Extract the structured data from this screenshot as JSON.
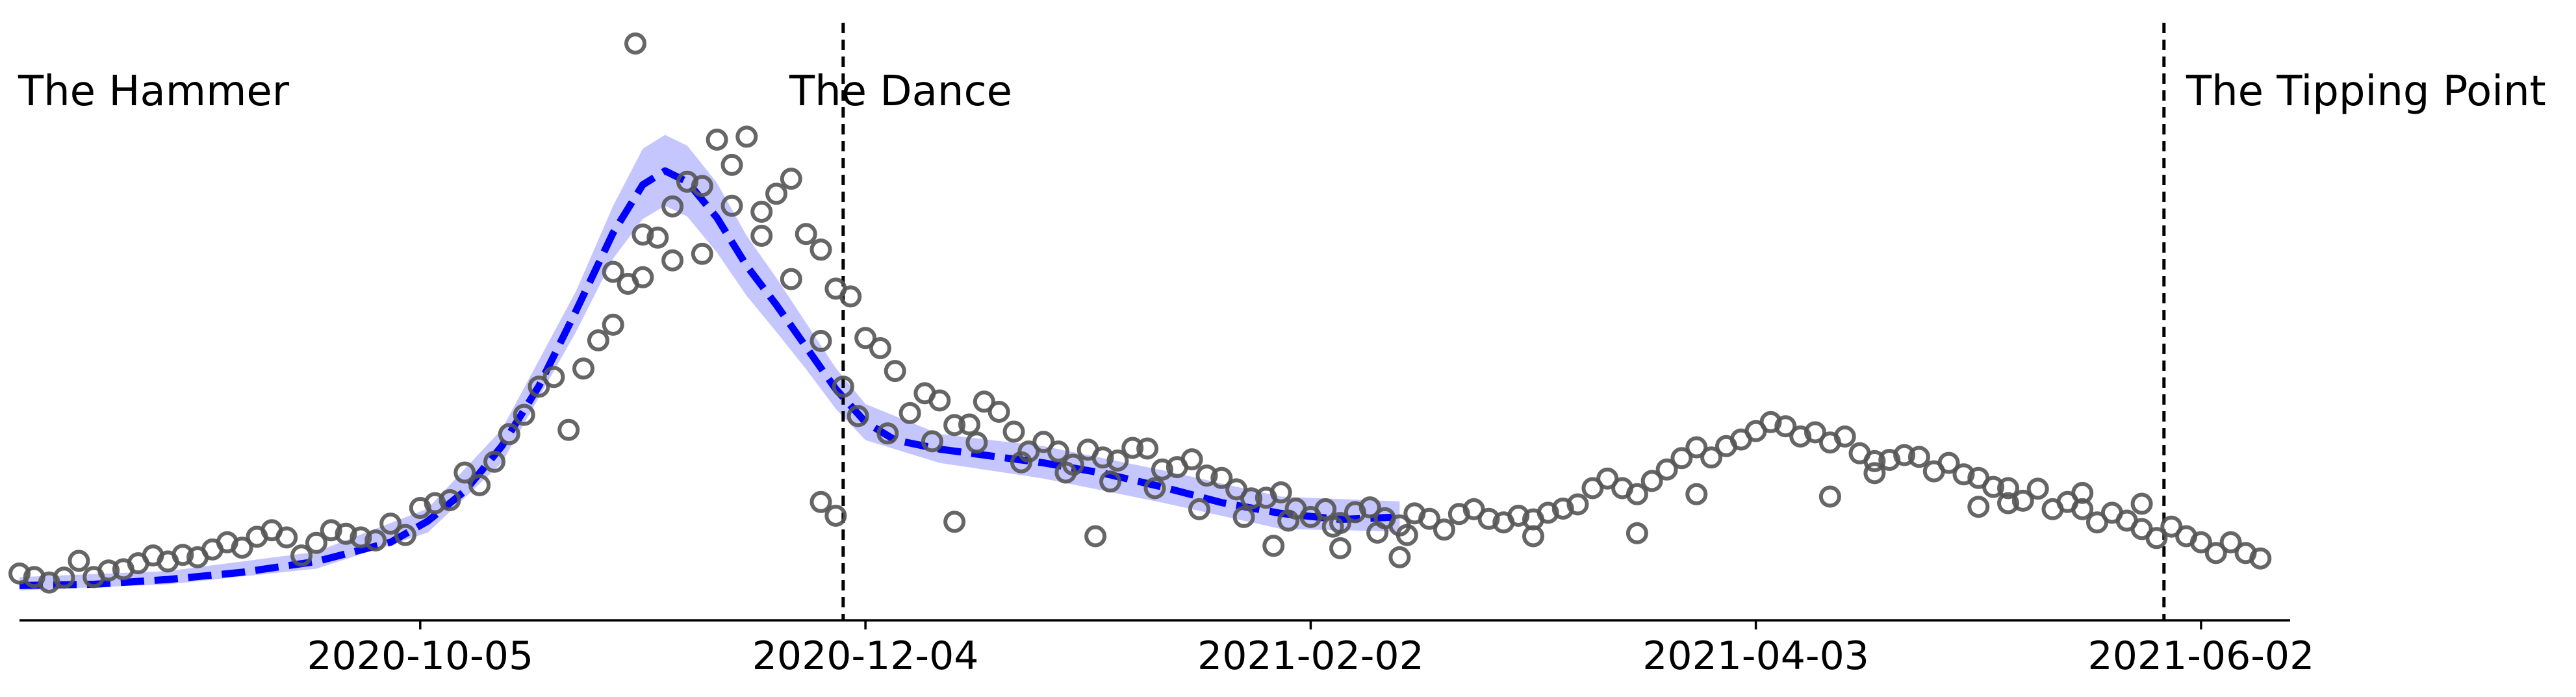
{
  "chart_data": {
    "type": "scatter",
    "title": "",
    "xlabel": "",
    "ylabel": "",
    "x_axis": {
      "type": "date",
      "range": [
        "2020-08-12",
        "2021-06-14"
      ],
      "ticks": [
        "2020-10-05",
        "2020-12-04",
        "2021-02-02",
        "2021-04-03",
        "2021-06-02"
      ]
    },
    "y_axis": {
      "visible": false,
      "ylim": [
        0,
        1
      ]
    },
    "grid": false,
    "legend": "none",
    "colors": {
      "points": "#555555",
      "fit_line": "#0000ff",
      "band": "#8080ff",
      "vlines": "#000000"
    },
    "phase_boundaries": [
      "2020-12-01",
      "2021-05-28"
    ],
    "annotations": [
      "The Hammer",
      "The Dance",
      "The Tipping Point"
    ],
    "series": [
      {
        "kind": "scatter",
        "points": [
          [
            "2020-08-12",
            0.078
          ],
          [
            "2020-08-14",
            0.072
          ],
          [
            "2020-08-16",
            0.063
          ],
          [
            "2020-08-18",
            0.071
          ],
          [
            "2020-08-20",
            0.099
          ],
          [
            "2020-08-22",
            0.072
          ],
          [
            "2020-08-24",
            0.083
          ],
          [
            "2020-08-26",
            0.085
          ],
          [
            "2020-08-28",
            0.095
          ],
          [
            "2020-08-30",
            0.108
          ],
          [
            "2020-09-01",
            0.098
          ],
          [
            "2020-09-03",
            0.109
          ],
          [
            "2020-09-05",
            0.105
          ],
          [
            "2020-09-07",
            0.118
          ],
          [
            "2020-09-09",
            0.13
          ],
          [
            "2020-09-11",
            0.121
          ],
          [
            "2020-09-13",
            0.139
          ],
          [
            "2020-09-15",
            0.15
          ],
          [
            "2020-09-17",
            0.138
          ],
          [
            "2020-09-19",
            0.108
          ],
          [
            "2020-09-21",
            0.129
          ],
          [
            "2020-09-23",
            0.15
          ],
          [
            "2020-09-25",
            0.144
          ],
          [
            "2020-09-27",
            0.138
          ],
          [
            "2020-09-29",
            0.133
          ],
          [
            "2020-10-01",
            0.161
          ],
          [
            "2020-10-03",
            0.142
          ],
          [
            "2020-10-05",
            0.187
          ],
          [
            "2020-10-07",
            0.195
          ],
          [
            "2020-10-09",
            0.2
          ],
          [
            "2020-10-11",
            0.246
          ],
          [
            "2020-10-13",
            0.225
          ],
          [
            "2020-10-15",
            0.264
          ],
          [
            "2020-10-17",
            0.31
          ],
          [
            "2020-10-19",
            0.342
          ],
          [
            "2020-10-21",
            0.389
          ],
          [
            "2020-10-23",
            0.405
          ],
          [
            "2020-10-25",
            0.317
          ],
          [
            "2020-10-27",
            0.419
          ],
          [
            "2020-10-29",
            0.466
          ],
          [
            "2020-10-31",
            0.492
          ],
          [
            "2020-11-02",
            0.56
          ],
          [
            "2020-11-04",
            0.571
          ],
          [
            "2020-11-06",
            0.637
          ],
          [
            "2020-11-08",
            0.599
          ],
          [
            "2020-11-10",
            0.73
          ],
          [
            "2020-11-12",
            0.61
          ],
          [
            "2020-11-14",
            0.8
          ],
          [
            "2020-11-16",
            0.758
          ],
          [
            "2020-11-18",
            0.805
          ],
          [
            "2020-11-20",
            0.68
          ],
          [
            "2020-11-22",
            0.71
          ],
          [
            "2020-11-24",
            0.735
          ],
          [
            "2020-11-26",
            0.643
          ],
          [
            "2020-11-28",
            0.617
          ],
          [
            "2020-11-30",
            0.552
          ],
          [
            "2020-12-02",
            0.539
          ],
          [
            "2020-12-04",
            0.47
          ],
          [
            "2020-12-06",
            0.453
          ],
          [
            "2020-12-08",
            0.415
          ],
          [
            "2020-12-10",
            0.345
          ],
          [
            "2020-12-12",
            0.378
          ],
          [
            "2020-12-14",
            0.366
          ],
          [
            "2020-12-16",
            0.325
          ],
          [
            "2020-12-18",
            0.326
          ],
          [
            "2020-12-20",
            0.364
          ],
          [
            "2020-12-22",
            0.347
          ],
          [
            "2020-12-24",
            0.314
          ],
          [
            "2020-12-26",
            0.281
          ],
          [
            "2020-12-28",
            0.297
          ],
          [
            "2020-12-30",
            0.281
          ],
          [
            "2021-01-01",
            0.259
          ],
          [
            "2021-01-03",
            0.284
          ],
          [
            "2021-01-05",
            0.271
          ],
          [
            "2021-01-07",
            0.266
          ],
          [
            "2021-01-09",
            0.287
          ],
          [
            "2021-01-11",
            0.286
          ],
          [
            "2021-01-13",
            0.251
          ],
          [
            "2021-01-15",
            0.255
          ],
          [
            "2021-01-17",
            0.268
          ],
          [
            "2021-01-19",
            0.241
          ],
          [
            "2021-01-21",
            0.237
          ],
          [
            "2021-01-23",
            0.218
          ],
          [
            "2021-01-25",
            0.203
          ],
          [
            "2021-01-27",
            0.204
          ],
          [
            "2021-01-29",
            0.213
          ],
          [
            "2021-01-31",
            0.186
          ],
          [
            "2021-02-02",
            0.172
          ],
          [
            "2021-02-04",
            0.185
          ],
          [
            "2021-02-06",
            0.162
          ],
          [
            "2021-02-08",
            0.18
          ],
          [
            "2021-02-10",
            0.188
          ],
          [
            "2021-02-12",
            0.17
          ],
          [
            "2021-02-14",
            0.158
          ],
          [
            "2021-02-16",
            0.178
          ],
          [
            "2021-02-18",
            0.169
          ],
          [
            "2021-02-20",
            0.151
          ],
          [
            "2021-02-22",
            0.177
          ],
          [
            "2021-02-24",
            0.185
          ],
          [
            "2021-02-26",
            0.169
          ],
          [
            "2021-02-28",
            0.163
          ],
          [
            "2021-03-02",
            0.174
          ],
          [
            "2021-03-04",
            0.168
          ],
          [
            "2021-03-06",
            0.179
          ],
          [
            "2021-03-08",
            0.186
          ],
          [
            "2021-03-10",
            0.193
          ],
          [
            "2021-03-12",
            0.22
          ],
          [
            "2021-03-14",
            0.236
          ],
          [
            "2021-03-16",
            0.22
          ],
          [
            "2021-03-18",
            0.21
          ],
          [
            "2021-03-20",
            0.232
          ],
          [
            "2021-03-22",
            0.251
          ],
          [
            "2021-03-24",
            0.27
          ],
          [
            "2021-03-26",
            0.288
          ],
          [
            "2021-03-28",
            0.271
          ],
          [
            "2021-03-30",
            0.29
          ],
          [
            "2021-04-01",
            0.301
          ],
          [
            "2021-04-03",
            0.315
          ],
          [
            "2021-04-05",
            0.33
          ],
          [
            "2021-04-07",
            0.323
          ],
          [
            "2021-04-09",
            0.306
          ],
          [
            "2021-04-11",
            0.313
          ],
          [
            "2021-04-13",
            0.296
          ],
          [
            "2021-04-15",
            0.306
          ],
          [
            "2021-04-17",
            0.278
          ],
          [
            "2021-04-19",
            0.265
          ],
          [
            "2021-04-21",
            0.267
          ],
          [
            "2021-04-23",
            0.275
          ],
          [
            "2021-04-25",
            0.272
          ],
          [
            "2021-04-27",
            0.248
          ],
          [
            "2021-04-29",
            0.262
          ],
          [
            "2021-05-01",
            0.243
          ],
          [
            "2021-05-03",
            0.237
          ],
          [
            "2021-05-05",
            0.222
          ],
          [
            "2021-05-07",
            0.22
          ],
          [
            "2021-05-09",
            0.199
          ],
          [
            "2021-05-11",
            0.219
          ],
          [
            "2021-05-13",
            0.185
          ],
          [
            "2021-05-15",
            0.197
          ],
          [
            "2021-05-17",
            0.185
          ],
          [
            "2021-05-19",
            0.163
          ],
          [
            "2021-05-21",
            0.179
          ],
          [
            "2021-05-23",
            0.166
          ],
          [
            "2021-05-25",
            0.152
          ],
          [
            "2021-05-27",
            0.137
          ],
          [
            "2021-05-29",
            0.156
          ],
          [
            "2021-05-31",
            0.14
          ],
          [
            "2021-06-02",
            0.13
          ],
          [
            "2021-06-04",
            0.112
          ],
          [
            "2021-06-06",
            0.13
          ],
          [
            "2021-06-08",
            0.112
          ],
          [
            "2021-06-10",
            0.103
          ],
          [
            "2020-10-31",
            0.58
          ],
          [
            "2020-11-04",
            0.642
          ],
          [
            "2020-11-08",
            0.689
          ],
          [
            "2020-11-12",
            0.723
          ],
          [
            "2020-11-03",
            0.96
          ],
          [
            "2020-11-16",
            0.69
          ],
          [
            "2020-11-20",
            0.64
          ],
          [
            "2020-11-24",
            0.568
          ],
          [
            "2020-11-28",
            0.465
          ],
          [
            "2020-12-01",
            0.389
          ],
          [
            "2020-12-03",
            0.34
          ],
          [
            "2020-12-07",
            0.311
          ],
          [
            "2020-12-13",
            0.298
          ],
          [
            "2020-12-19",
            0.296
          ],
          [
            "2020-12-25",
            0.263
          ],
          [
            "2020-12-31",
            0.246
          ],
          [
            "2021-01-06",
            0.231
          ],
          [
            "2021-01-12",
            0.22
          ],
          [
            "2021-01-18",
            0.185
          ],
          [
            "2021-01-24",
            0.172
          ],
          [
            "2021-01-30",
            0.166
          ],
          [
            "2021-02-05",
            0.156
          ],
          [
            "2021-02-11",
            0.146
          ],
          [
            "2021-02-15",
            0.142
          ],
          [
            "2020-11-28",
            0.197
          ],
          [
            "2020-11-30",
            0.174
          ],
          [
            "2020-12-16",
            0.164
          ],
          [
            "2021-01-04",
            0.14
          ],
          [
            "2021-01-28",
            0.124
          ],
          [
            "2021-02-06",
            0.12
          ],
          [
            "2021-02-14",
            0.105
          ],
          [
            "2021-03-04",
            0.14
          ],
          [
            "2021-03-18",
            0.145
          ],
          [
            "2021-03-26",
            0.21
          ],
          [
            "2021-04-13",
            0.206
          ],
          [
            "2021-04-19",
            0.245
          ],
          [
            "2021-05-03",
            0.189
          ],
          [
            "2021-05-07",
            0.195
          ],
          [
            "2021-05-17",
            0.212
          ],
          [
            "2021-05-25",
            0.194
          ]
        ]
      },
      {
        "kind": "fit",
        "points": [
          [
            "2020-08-12",
            0.058
          ],
          [
            "2020-08-22",
            0.06
          ],
          [
            "2020-09-01",
            0.068
          ],
          [
            "2020-09-11",
            0.08
          ],
          [
            "2020-09-21",
            0.098
          ],
          [
            "2020-10-01",
            0.13
          ],
          [
            "2020-10-06",
            0.165
          ],
          [
            "2020-10-11",
            0.215
          ],
          [
            "2020-10-16",
            0.29
          ],
          [
            "2020-10-21",
            0.39
          ],
          [
            "2020-10-26",
            0.515
          ],
          [
            "2020-10-31",
            0.645
          ],
          [
            "2020-11-04",
            0.725
          ],
          [
            "2020-11-07",
            0.748
          ],
          [
            "2020-11-10",
            0.73
          ],
          [
            "2020-11-14",
            0.67
          ],
          [
            "2020-11-18",
            0.59
          ],
          [
            "2020-11-22",
            0.525
          ],
          [
            "2020-11-26",
            0.455
          ],
          [
            "2020-11-30",
            0.385
          ],
          [
            "2020-12-04",
            0.33
          ],
          [
            "2020-12-08",
            0.3
          ],
          [
            "2020-12-14",
            0.285
          ],
          [
            "2020-12-20",
            0.275
          ],
          [
            "2020-12-28",
            0.262
          ],
          [
            "2021-01-05",
            0.245
          ],
          [
            "2021-01-13",
            0.222
          ],
          [
            "2021-01-21",
            0.196
          ],
          [
            "2021-01-29",
            0.178
          ],
          [
            "2021-02-06",
            0.168
          ],
          [
            "2021-02-14",
            0.172
          ]
        ]
      },
      {
        "kind": "band",
        "upper": [
          [
            "2020-08-12",
            0.072
          ],
          [
            "2020-09-01",
            0.082
          ],
          [
            "2020-09-21",
            0.114
          ],
          [
            "2020-10-06",
            0.186
          ],
          [
            "2020-10-16",
            0.318
          ],
          [
            "2020-10-26",
            0.548
          ],
          [
            "2020-10-31",
            0.69
          ],
          [
            "2020-11-04",
            0.785
          ],
          [
            "2020-11-07",
            0.808
          ],
          [
            "2020-11-10",
            0.79
          ],
          [
            "2020-11-14",
            0.728
          ],
          [
            "2020-11-18",
            0.64
          ],
          [
            "2020-11-22",
            0.57
          ],
          [
            "2020-11-26",
            0.495
          ],
          [
            "2020-11-30",
            0.42
          ],
          [
            "2020-12-04",
            0.36
          ],
          [
            "2020-12-14",
            0.31
          ],
          [
            "2020-12-28",
            0.29
          ],
          [
            "2021-01-13",
            0.25
          ],
          [
            "2021-01-29",
            0.206
          ],
          [
            "2021-02-14",
            0.198
          ]
        ],
        "lower": [
          [
            "2020-08-12",
            0.05
          ],
          [
            "2020-09-01",
            0.06
          ],
          [
            "2020-09-21",
            0.086
          ],
          [
            "2020-10-06",
            0.146
          ],
          [
            "2020-10-16",
            0.262
          ],
          [
            "2020-10-26",
            0.48
          ],
          [
            "2020-10-31",
            0.602
          ],
          [
            "2020-11-04",
            0.668
          ],
          [
            "2020-11-07",
            0.69
          ],
          [
            "2020-11-10",
            0.672
          ],
          [
            "2020-11-14",
            0.612
          ],
          [
            "2020-11-18",
            0.54
          ],
          [
            "2020-11-22",
            0.48
          ],
          [
            "2020-11-26",
            0.418
          ],
          [
            "2020-11-30",
            0.352
          ],
          [
            "2020-12-04",
            0.3
          ],
          [
            "2020-12-14",
            0.262
          ],
          [
            "2020-12-28",
            0.236
          ],
          [
            "2021-01-13",
            0.196
          ],
          [
            "2021-01-29",
            0.152
          ],
          [
            "2021-02-14",
            0.148
          ]
        ]
      }
    ]
  }
}
